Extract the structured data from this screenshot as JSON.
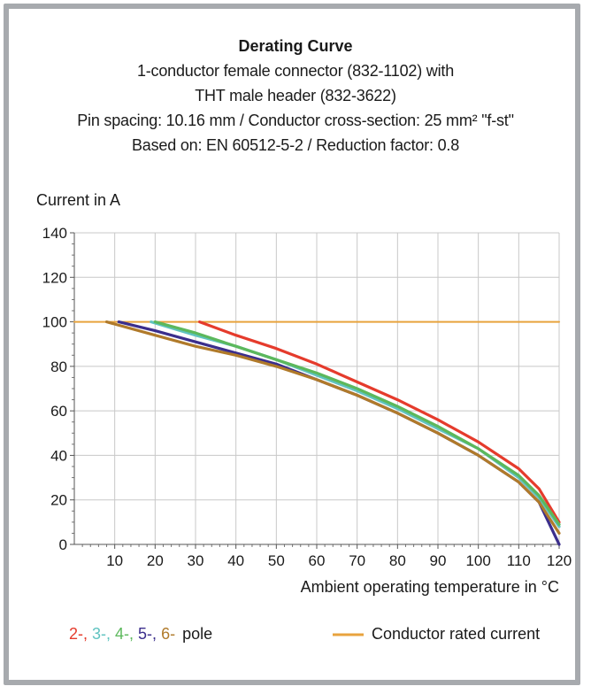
{
  "chart_data": {
    "type": "line",
    "title": "Derating Curve",
    "subtitle": [
      "1-conductor female connector (832-1102) with",
      "THT male header (832-3622)",
      "Pin spacing: 10.16 mm / Conductor cross-section: 25 mm² \"f-st\"",
      "Based on: EN 60512-5-2 / Reduction factor: 0.8"
    ],
    "ylabel": "Current in A",
    "xlabel": "Ambient operating temperature in °C",
    "xlim": [
      0,
      120
    ],
    "ylim": [
      0,
      140
    ],
    "x_ticks": [
      10,
      20,
      30,
      40,
      50,
      60,
      70,
      80,
      90,
      100,
      110,
      120
    ],
    "y_ticks": [
      0,
      20,
      40,
      60,
      80,
      100,
      120,
      140
    ],
    "grid": true,
    "series": [
      {
        "name": "Conductor rated current",
        "color": "#e8a33d",
        "x": [
          0,
          120
        ],
        "y": [
          100,
          100
        ]
      },
      {
        "name": "2-",
        "color": "#e53b2c",
        "x": [
          31,
          40,
          50,
          60,
          70,
          80,
          90,
          100,
          110,
          115,
          120
        ],
        "y": [
          100,
          94,
          88,
          81,
          73,
          65,
          56,
          46,
          34,
          25,
          10
        ]
      },
      {
        "name": "3-",
        "color": "#5fc3c0",
        "x": [
          19,
          30,
          40,
          50,
          60,
          70,
          80,
          90,
          100,
          110,
          115,
          120
        ],
        "y": [
          100,
          94,
          89,
          83,
          76,
          69,
          61,
          52,
          43,
          30,
          21,
          8
        ]
      },
      {
        "name": "4-",
        "color": "#5cb85c",
        "x": [
          20,
          30,
          40,
          50,
          60,
          70,
          80,
          90,
          100,
          110,
          115,
          120
        ],
        "y": [
          100,
          95,
          89,
          83,
          77,
          70,
          62,
          53,
          43,
          31,
          22,
          9
        ]
      },
      {
        "name": "5-",
        "color": "#3b2e8c",
        "x": [
          11,
          20,
          30,
          40,
          50,
          60,
          70,
          80,
          90,
          100,
          110,
          115,
          120
        ],
        "y": [
          100,
          96,
          91,
          86,
          81,
          74,
          67,
          59,
          50,
          40,
          28,
          19,
          0
        ]
      },
      {
        "name": "6-",
        "color": "#b07a2a",
        "x": [
          8,
          20,
          30,
          40,
          50,
          60,
          70,
          80,
          90,
          100,
          110,
          115,
          120
        ],
        "y": [
          100,
          94,
          89,
          85,
          80,
          74,
          67,
          59,
          50,
          40,
          28,
          19,
          5
        ]
      }
    ],
    "legend": {
      "poles": [
        "2-,",
        "3-,",
        "4-,",
        "5-,",
        "6-"
      ],
      "pole_suffix": "pole",
      "rated": "Conductor rated current"
    }
  }
}
